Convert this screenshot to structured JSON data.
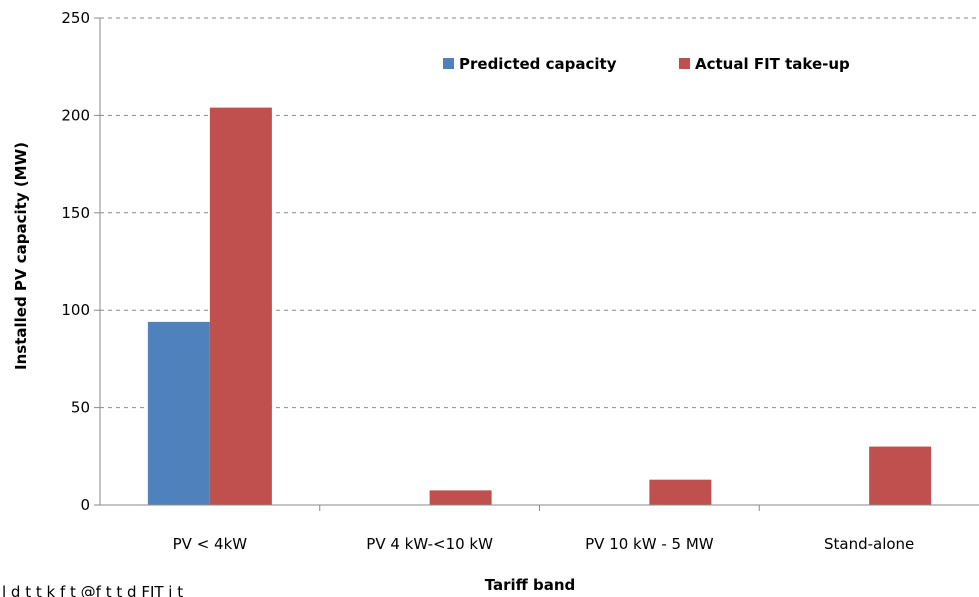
{
  "chart_data": {
    "type": "bar",
    "categories": [
      "PV < 4kW",
      "PV 4 kW-<10 kW",
      "PV 10 kW - 5 MW",
      "Stand-alone"
    ],
    "series": [
      {
        "name": "Predicted capacity",
        "values": [
          94,
          0,
          0,
          0
        ],
        "color": "#4f81bd"
      },
      {
        "name": "Actual FIT take-up",
        "values": [
          204,
          7.5,
          13,
          30
        ],
        "color": "#c0504d"
      }
    ],
    "xlabel": "Tariff band",
    "ylabel": "Installed  PV capacity (MW)",
    "ylim": [
      0,
      250
    ],
    "yticks": [
      0,
      50,
      100,
      150,
      200,
      250
    ],
    "grid": true,
    "legend_position": "top-right"
  },
  "caption": "l d t t k f t @f t t d FIT i t"
}
